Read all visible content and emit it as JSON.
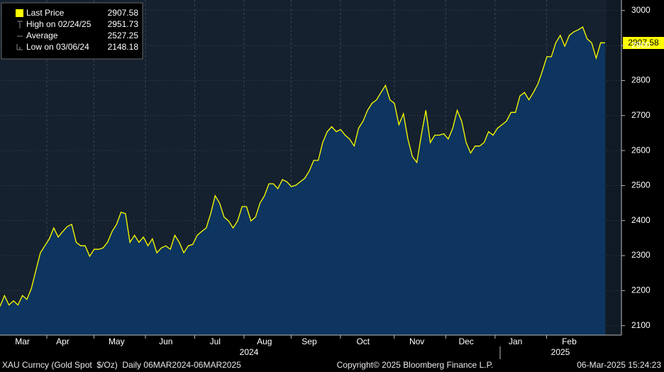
{
  "chart_data": {
    "type": "area-line",
    "series": [
      {
        "name": "Last Price",
        "color": "#ffff00",
        "fill": "#0d355f",
        "values": [
          2155,
          2186,
          2159,
          2171,
          2159,
          2186,
          2175,
          2206,
          2257,
          2308,
          2328,
          2348,
          2379,
          2353,
          2369,
          2383,
          2389,
          2338,
          2328,
          2328,
          2298,
          2318,
          2318,
          2322,
          2338,
          2369,
          2389,
          2424,
          2420,
          2338,
          2358,
          2338,
          2353,
          2328,
          2348,
          2308,
          2322,
          2328,
          2318,
          2358,
          2338,
          2308,
          2328,
          2332,
          2358,
          2369,
          2379,
          2420,
          2471,
          2450,
          2410,
          2399,
          2379,
          2399,
          2440,
          2440,
          2399,
          2410,
          2450,
          2471,
          2505,
          2505,
          2491,
          2517,
          2511,
          2497,
          2501,
          2511,
          2521,
          2542,
          2572,
          2572,
          2623,
          2654,
          2668,
          2654,
          2660,
          2644,
          2633,
          2613,
          2664,
          2684,
          2715,
          2735,
          2745,
          2766,
          2786,
          2745,
          2735,
          2674,
          2705,
          2633,
          2583,
          2566,
          2644,
          2715,
          2623,
          2644,
          2644,
          2648,
          2633,
          2664,
          2715,
          2684,
          2623,
          2593,
          2613,
          2613,
          2623,
          2654,
          2644,
          2664,
          2674,
          2684,
          2709,
          2709,
          2756,
          2766,
          2745,
          2766,
          2790,
          2827,
          2868,
          2868,
          2908,
          2929,
          2898,
          2929,
          2939,
          2945,
          2953,
          2919,
          2908,
          2864,
          2908,
          2907.58
        ]
      }
    ],
    "categories": [
      null,
      null,
      null,
      null,
      null,
      "Mar",
      null,
      null,
      null,
      null,
      null,
      null,
      null,
      null,
      "Apr",
      null,
      null,
      null,
      null,
      null,
      null,
      null,
      null,
      null,
      null,
      null,
      "May",
      null,
      null,
      null,
      null,
      null,
      null,
      null,
      null,
      null,
      null,
      "Jun",
      null,
      null,
      null,
      null,
      null,
      null,
      null,
      null,
      null,
      null,
      "Jul",
      null,
      null,
      null,
      null,
      null,
      null,
      null,
      null,
      null,
      null,
      "Aug",
      null,
      null,
      null,
      null,
      null,
      null,
      null,
      null,
      null,
      "Sep",
      null,
      null,
      null,
      null,
      null,
      null,
      null,
      null,
      null,
      null,
      null,
      "Oct",
      null,
      null,
      null,
      null,
      null,
      null,
      null,
      null,
      null,
      null,
      null,
      "Nov",
      null,
      null,
      null,
      null,
      null,
      null,
      null,
      null,
      null,
      null,
      "Dec",
      null,
      null,
      null,
      null,
      null,
      null,
      null,
      null,
      null,
      null,
      "Jan",
      null,
      null,
      null,
      null,
      null,
      null,
      null,
      null,
      null,
      null,
      null,
      "Feb",
      null,
      null,
      null,
      null,
      null,
      null,
      null,
      null
    ],
    "years": [
      "2024",
      "2025"
    ],
    "ylim": [
      2073,
      3030
    ],
    "yticks": [
      2100,
      2200,
      2300,
      2400,
      2500,
      2600,
      2700,
      2800,
      2900,
      3000
    ],
    "grid": true,
    "stats": [
      {
        "label": "High on 02/24/25",
        "value": 2951.73
      },
      {
        "label": "Average",
        "value": 2527.25
      },
      {
        "label": "Low on 03/06/24",
        "value": 2148.18
      }
    ]
  },
  "footer": {
    "left": "XAU Curncy (Gold Spot  $/Oz)  Daily 06MAR2024-06MAR2025",
    "center": "Copyright© 2025 Bloomberg Finance L.P.",
    "right": "06-Mar-2025 15:24:23"
  }
}
